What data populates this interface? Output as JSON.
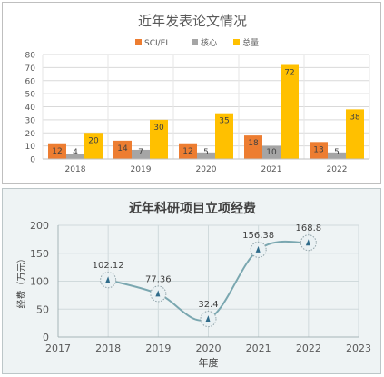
{
  "chart_data": [
    {
      "type": "bar",
      "title": "近年发表论文情况",
      "categories": [
        "2018",
        "2019",
        "2020",
        "2021",
        "2022"
      ],
      "series": [
        {
          "name": "SCI/EI",
          "values": [
            12,
            14,
            12,
            18,
            13
          ],
          "color": "#ed7d31"
        },
        {
          "name": "核心",
          "values": [
            4,
            7,
            5,
            10,
            5
          ],
          "color": "#a5a5a5"
        },
        {
          "name": "总量",
          "values": [
            20,
            30,
            35,
            72,
            38
          ],
          "color": "#ffc000"
        }
      ],
      "ylim": [
        0,
        80
      ],
      "yticks": [
        "0",
        "10",
        "20",
        "30",
        "40",
        "50",
        "60",
        "70",
        "80"
      ],
      "grid": true,
      "legend": "top-center",
      "data_labels": true
    },
    {
      "type": "line",
      "title": "近年科研项目立项经费",
      "xlabel": "年度",
      "ylabel": "经费（万元）",
      "x": [
        2018,
        2019,
        2020,
        2021,
        2022
      ],
      "y": [
        102.12,
        77.36,
        32.4,
        156.38,
        168.8
      ],
      "point_labels": [
        "102.12",
        "77.36",
        "32.4",
        "156.38",
        "168.8"
      ],
      "xlim": [
        2017,
        2023
      ],
      "xticks": [
        "2017",
        "2018",
        "2019",
        "2020",
        "2021",
        "2022",
        "2023"
      ],
      "ylim": [
        0,
        200
      ],
      "yticks": [
        "0",
        "50",
        "100",
        "150",
        "200"
      ],
      "smooth": true,
      "grid": true,
      "line_color": "#7aa7b0"
    }
  ]
}
